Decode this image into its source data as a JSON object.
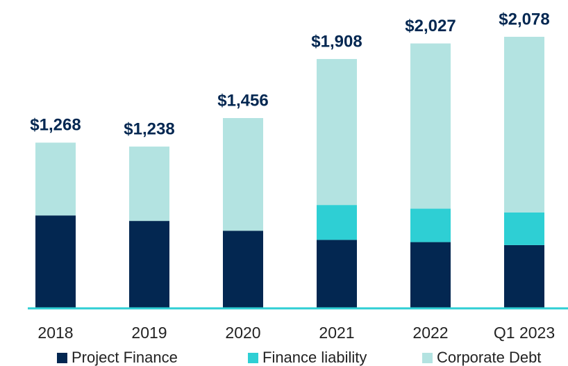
{
  "chart_data": {
    "type": "stacked_bar",
    "categories": [
      "2018",
      "2019",
      "2020",
      "2021",
      "2022",
      "Q1 2023"
    ],
    "series": [
      {
        "name": "Project Finance",
        "color": "#032751",
        "values": [
          711,
          669,
          594,
          524,
          507,
          484
        ]
      },
      {
        "name": "Finance liability",
        "color": "#2ecfd4",
        "values": [
          0,
          0,
          0,
          267,
          256,
          250
        ]
      },
      {
        "name": "Corporate Debt",
        "color": "#b3e3e1",
        "values": [
          557,
          569,
          862,
          1117,
          1264,
          1344
        ]
      }
    ],
    "totals": [
      1268,
      1238,
      1456,
      1908,
      2027,
      2078
    ],
    "total_labels": [
      "$1,268",
      "$1,238",
      "$1,456",
      "$1,908",
      "$2,027",
      "$2,078"
    ],
    "ylim": [
      0,
      2200
    ],
    "axis_color": "#2ecfd4"
  }
}
